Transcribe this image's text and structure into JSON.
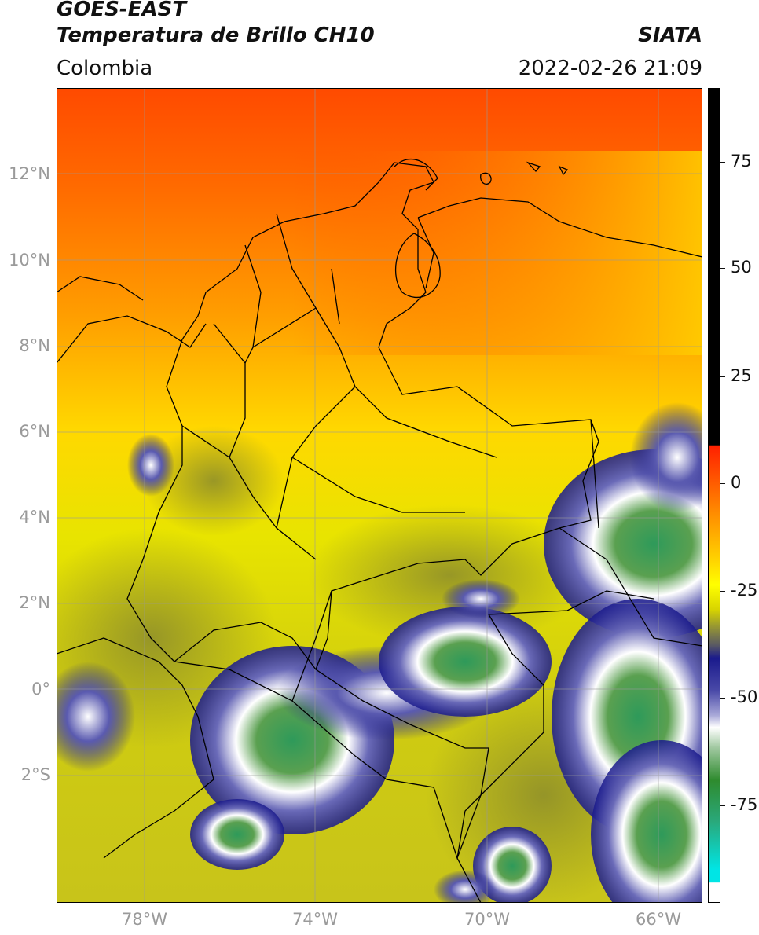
{
  "header": {
    "satellite": "GOES-EAST",
    "product": "Temperatura de Brillo CH10",
    "region": "Colombia",
    "agency": "SIATA",
    "datetime": "2022-02-26 21:09"
  },
  "map": {
    "lat_labels": [
      "12°N",
      "10°N",
      "8°N",
      "6°N",
      "4°N",
      "2°N",
      "0°",
      "2°S"
    ],
    "lon_labels": [
      "78°W",
      "74°W",
      "70°W",
      "66°W"
    ],
    "extent": {
      "lon_min": -80,
      "lon_max": -65,
      "lat_min": -4.6,
      "lat_max": 14
    },
    "gridlines": true
  },
  "colorbar": {
    "tick_labels": [
      "75",
      "50",
      "25",
      "0",
      "-25",
      "-50",
      "-75"
    ],
    "range": [
      -97,
      90
    ],
    "colors": {
      "warm_black": "#000000",
      "red": "#ff2a00",
      "orange": "#ff9a00",
      "yellow": "#ffff00",
      "olive": "#8f8f2a",
      "navy": "#1a1a8c",
      "white": "#ffffff",
      "green": "#2e8b2e",
      "cyan": "#00e5e5"
    }
  }
}
